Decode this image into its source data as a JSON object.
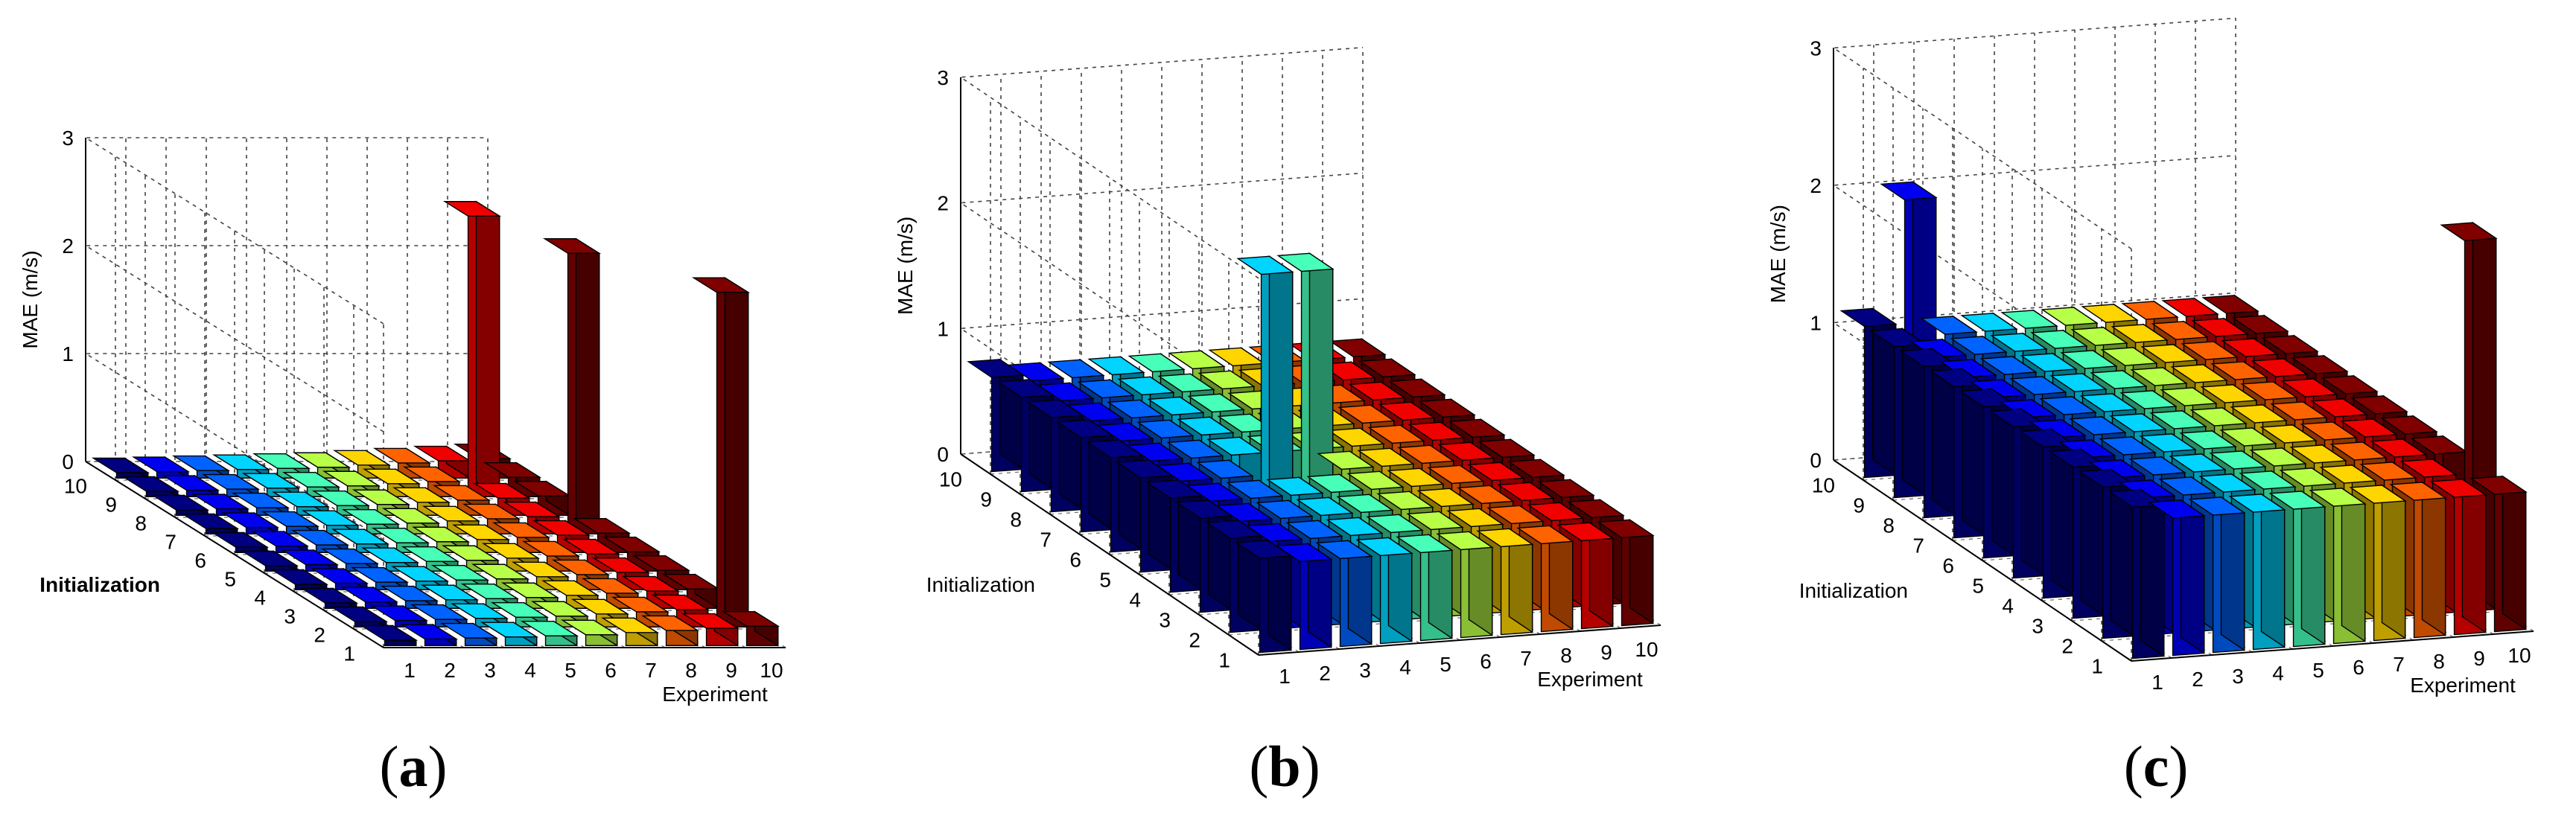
{
  "chart_data": [
    {
      "type": "bar3d",
      "panel_label": "a",
      "title": "",
      "xlabel": "Experiment",
      "ylabel": "Initialization",
      "zlabel": "MAE (m/s)",
      "x_ticks": [
        "1",
        "2",
        "3",
        "4",
        "5",
        "6",
        "7",
        "8",
        "9",
        "10"
      ],
      "y_ticks": [
        "1",
        "2",
        "3",
        "4",
        "5",
        "6",
        "7",
        "8",
        "9",
        "10"
      ],
      "z_ticks": [
        "0",
        "1",
        "2",
        "3"
      ],
      "zlim": [
        0,
        3
      ],
      "grid": true,
      "values": [
        [
          0.05,
          0.06,
          0.07,
          0.08,
          0.09,
          0.1,
          0.12,
          0.14,
          0.16,
          0.18
        ],
        [
          0.05,
          0.06,
          0.07,
          0.08,
          0.09,
          0.1,
          0.12,
          0.14,
          0.16,
          3.1
        ],
        [
          0.05,
          0.06,
          0.07,
          0.08,
          0.09,
          0.1,
          0.12,
          0.14,
          0.16,
          0.18
        ],
        [
          0.05,
          0.06,
          0.07,
          0.08,
          0.09,
          0.1,
          0.12,
          0.14,
          0.16,
          0.18
        ],
        [
          0.05,
          0.06,
          0.07,
          0.08,
          0.09,
          0.1,
          0.12,
          0.14,
          0.16,
          0.18
        ],
        [
          0.05,
          0.06,
          0.07,
          0.08,
          0.09,
          0.1,
          0.12,
          0.14,
          0.16,
          0.18
        ],
        [
          0.05,
          0.06,
          0.07,
          0.08,
          0.09,
          0.1,
          0.12,
          0.14,
          0.16,
          2.6
        ],
        [
          0.05,
          0.06,
          0.07,
          0.08,
          0.09,
          0.1,
          0.12,
          0.14,
          0.16,
          0.18
        ],
        [
          0.05,
          0.06,
          0.07,
          0.08,
          0.09,
          0.1,
          0.12,
          0.14,
          2.6,
          0.18
        ],
        [
          0.05,
          0.06,
          0.07,
          0.08,
          0.09,
          0.1,
          0.12,
          0.14,
          0.16,
          0.18
        ]
      ]
    },
    {
      "type": "bar3d",
      "panel_label": "b",
      "title": "",
      "xlabel": "Experiment",
      "ylabel": "Initialization",
      "zlabel": "MAE (m/s)",
      "x_ticks": [
        "1",
        "2",
        "3",
        "4",
        "5",
        "6",
        "7",
        "8",
        "9",
        "10"
      ],
      "y_ticks": [
        "1",
        "2",
        "3",
        "4",
        "5",
        "6",
        "7",
        "8",
        "9",
        "10"
      ],
      "z_ticks": [
        "0",
        "1",
        "2",
        "3"
      ],
      "zlim": [
        0,
        3
      ],
      "grid": true,
      "values": [
        [
          0.75,
          0.7,
          0.7,
          0.7,
          0.7,
          0.7,
          0.7,
          0.7,
          0.7,
          0.7
        ],
        [
          0.75,
          0.7,
          0.7,
          0.7,
          0.7,
          0.7,
          0.7,
          0.7,
          0.7,
          0.7
        ],
        [
          0.75,
          0.7,
          0.7,
          0.7,
          0.7,
          0.7,
          0.7,
          0.7,
          0.7,
          0.7
        ],
        [
          0.75,
          0.7,
          0.7,
          0.7,
          0.7,
          0.7,
          0.7,
          0.7,
          0.7,
          0.7
        ],
        [
          0.75,
          0.7,
          0.7,
          2.3,
          2.3,
          0.7,
          0.7,
          0.7,
          0.7,
          0.7
        ],
        [
          0.75,
          0.7,
          0.7,
          0.7,
          0.7,
          0.7,
          0.7,
          0.7,
          0.7,
          0.7
        ],
        [
          0.75,
          0.7,
          0.7,
          0.7,
          0.7,
          0.7,
          0.7,
          0.7,
          0.7,
          0.7
        ],
        [
          0.75,
          0.7,
          0.7,
          0.7,
          0.7,
          0.7,
          0.7,
          0.7,
          0.7,
          0.7
        ],
        [
          0.75,
          0.7,
          0.7,
          0.7,
          0.7,
          0.7,
          0.7,
          0.7,
          0.7,
          0.7
        ],
        [
          0.75,
          0.7,
          0.7,
          0.7,
          0.7,
          0.7,
          0.7,
          0.7,
          0.7,
          0.7
        ]
      ]
    },
    {
      "type": "bar3d",
      "panel_label": "c",
      "title": "",
      "xlabel": "Experiment",
      "ylabel": "Initialization",
      "zlabel": "MAE (m/s)",
      "x_ticks": [
        "1",
        "2",
        "3",
        "4",
        "5",
        "6",
        "7",
        "8",
        "9",
        "10"
      ],
      "y_ticks": [
        "1",
        "2",
        "3",
        "4",
        "5",
        "6",
        "7",
        "8",
        "9",
        "10"
      ],
      "z_ticks": [
        "0",
        "1",
        "2",
        "3"
      ],
      "zlim": [
        0,
        3
      ],
      "grid": true,
      "values": [
        [
          1.1,
          1.0,
          1.0,
          1.0,
          1.0,
          1.0,
          1.0,
          1.0,
          1.0,
          1.0
        ],
        [
          1.1,
          1.0,
          1.0,
          1.0,
          1.0,
          1.0,
          1.0,
          1.0,
          1.0,
          2.7
        ],
        [
          1.1,
          1.0,
          1.0,
          1.0,
          1.0,
          1.0,
          1.0,
          1.0,
          1.0,
          1.0
        ],
        [
          1.1,
          1.0,
          1.0,
          1.0,
          1.0,
          1.0,
          1.0,
          1.0,
          1.0,
          1.0
        ],
        [
          1.1,
          1.0,
          1.0,
          1.0,
          1.0,
          1.0,
          1.0,
          1.0,
          1.0,
          1.0
        ],
        [
          1.1,
          1.0,
          1.0,
          1.0,
          1.0,
          1.0,
          1.0,
          1.0,
          1.0,
          1.0
        ],
        [
          1.1,
          1.0,
          1.0,
          1.0,
          1.0,
          1.0,
          1.0,
          1.0,
          1.0,
          1.0
        ],
        [
          1.1,
          1.0,
          1.0,
          1.0,
          1.0,
          1.0,
          1.0,
          1.0,
          1.0,
          1.0
        ],
        [
          1.1,
          1.0,
          1.0,
          1.0,
          1.0,
          1.0,
          1.0,
          1.0,
          1.0,
          1.0
        ],
        [
          1.1,
          2.0,
          1.0,
          1.0,
          1.0,
          1.0,
          1.0,
          1.0,
          1.0,
          1.0
        ]
      ]
    }
  ],
  "captions": [
    {
      "label": "a"
    },
    {
      "label": "b"
    },
    {
      "label": "c"
    }
  ]
}
